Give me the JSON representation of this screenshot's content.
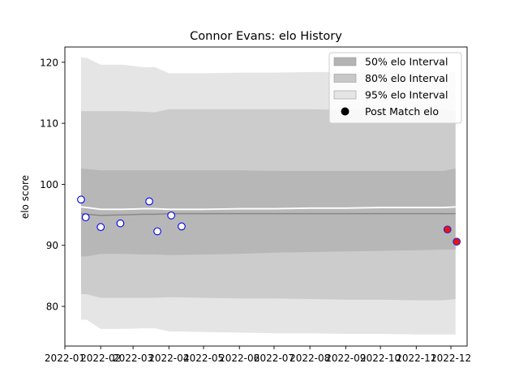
{
  "chart_data": {
    "type": "line",
    "title": "Connor Evans: elo History",
    "xlabel": "",
    "ylabel": "elo score",
    "xlim": [
      "2022-01-01",
      "2022-12-15"
    ],
    "ylim": [
      73.5,
      122.5
    ],
    "x_ticks": [
      "2022-01-01",
      "2022-02-01",
      "2022-03-01",
      "2022-04-01",
      "2022-05-01",
      "2022-06-01",
      "2022-07-01",
      "2022-08-01",
      "2022-09-01",
      "2022-10-01",
      "2022-11-01",
      "2022-12-01"
    ],
    "x_tick_labels": [
      "2022-01",
      "2022-02",
      "2022-03",
      "2022-04",
      "2022-05",
      "2022-06",
      "2022-07",
      "2022-08",
      "2022-09",
      "2022-10",
      "2022-11",
      "2022-12"
    ],
    "y_ticks": [
      80,
      90,
      100,
      110,
      120
    ],
    "legend_position": "upper-right",
    "grid": false,
    "colors": {
      "band_50": "#b3b3b3",
      "band_80": "#c8c8c8",
      "band_95": "#e5e5e5",
      "mean_line": "#888888",
      "upper_line": "#ffffff",
      "point_face_regular": "#ffffff",
      "point_edge_regular": "#0000ee",
      "point_face_recent": "#ee1111",
      "point_edge_recent": "#2222cc"
    },
    "intervals": {
      "x": [
        "2022-01-15",
        "2022-01-20",
        "2022-02-01",
        "2022-02-20",
        "2022-03-10",
        "2022-03-20",
        "2022-04-01",
        "2022-05-01",
        "2022-06-01",
        "2022-07-01",
        "2022-08-01",
        "2022-09-01",
        "2022-10-01",
        "2022-11-01",
        "2022-11-25",
        "2022-12-05"
      ],
      "series": [
        {
          "name": "50% elo Interval",
          "lower": [
            88.2,
            88.2,
            88.6,
            88.6,
            88.5,
            88.5,
            88.4,
            88.5,
            88.6,
            88.8,
            88.9,
            89.0,
            89.1,
            89.2,
            89.3,
            89.3
          ],
          "upper": [
            102.6,
            102.5,
            102.3,
            102.3,
            102.3,
            102.3,
            102.3,
            102.3,
            102.3,
            102.2,
            102.2,
            102.2,
            102.2,
            102.2,
            102.2,
            102.6
          ]
        },
        {
          "name": "80% elo Interval",
          "lower": [
            82.0,
            82.0,
            81.4,
            81.4,
            81.4,
            81.4,
            81.5,
            81.4,
            81.3,
            81.3,
            81.2,
            81.1,
            81.1,
            81.0,
            81.0,
            81.2
          ],
          "upper": [
            112.0,
            112.0,
            112.0,
            112.0,
            111.9,
            111.8,
            112.3,
            112.3,
            112.3,
            112.3,
            112.3,
            112.2,
            112.2,
            112.2,
            112.2,
            112.0
          ]
        },
        {
          "name": "95% elo Interval",
          "lower": [
            77.8,
            77.8,
            76.3,
            76.3,
            76.4,
            76.4,
            75.9,
            75.8,
            75.7,
            75.6,
            75.6,
            75.5,
            75.5,
            75.4,
            75.4,
            75.4
          ],
          "upper": [
            120.8,
            120.7,
            119.6,
            119.6,
            119.2,
            119.2,
            118.2,
            118.2,
            118.3,
            118.3,
            118.4,
            118.4,
            118.4,
            118.4,
            118.4,
            118.4
          ]
        }
      ],
      "mean": [
        95.2,
        95.1,
        94.9,
        95.0,
        95.1,
        95.1,
        95.2,
        95.2,
        95.2,
        95.2,
        95.2,
        95.2,
        95.2,
        95.2,
        95.2,
        95.2
      ],
      "upper_line": [
        96.3,
        96.2,
        95.9,
        95.9,
        96.0,
        96.0,
        95.9,
        95.9,
        96.0,
        96.0,
        96.1,
        96.1,
        96.2,
        96.2,
        96.2,
        96.3
      ]
    },
    "post_match": {
      "name": "Post Match elo",
      "points": [
        {
          "x": "2022-01-15",
          "y": 97.5,
          "recent": false
        },
        {
          "x": "2022-01-19",
          "y": 94.6,
          "recent": false
        },
        {
          "x": "2022-02-01",
          "y": 93.0,
          "recent": false
        },
        {
          "x": "2022-02-18",
          "y": 93.6,
          "recent": false
        },
        {
          "x": "2022-03-15",
          "y": 97.2,
          "recent": false
        },
        {
          "x": "2022-03-22",
          "y": 92.3,
          "recent": false
        },
        {
          "x": "2022-04-03",
          "y": 94.9,
          "recent": false
        },
        {
          "x": "2022-04-12",
          "y": 93.1,
          "recent": false
        },
        {
          "x": "2022-11-28",
          "y": 92.6,
          "recent": true
        },
        {
          "x": "2022-12-06",
          "y": 90.6,
          "recent": true
        }
      ]
    },
    "legend": [
      {
        "label": "50% elo Interval",
        "kind": "patch",
        "color": "#b3b3b3"
      },
      {
        "label": "80% elo Interval",
        "kind": "patch",
        "color": "#c8c8c8"
      },
      {
        "label": "95% elo Interval",
        "kind": "patch",
        "color": "#e5e5e5"
      },
      {
        "label": "Post Match elo",
        "kind": "marker",
        "color": "#000000"
      }
    ]
  }
}
